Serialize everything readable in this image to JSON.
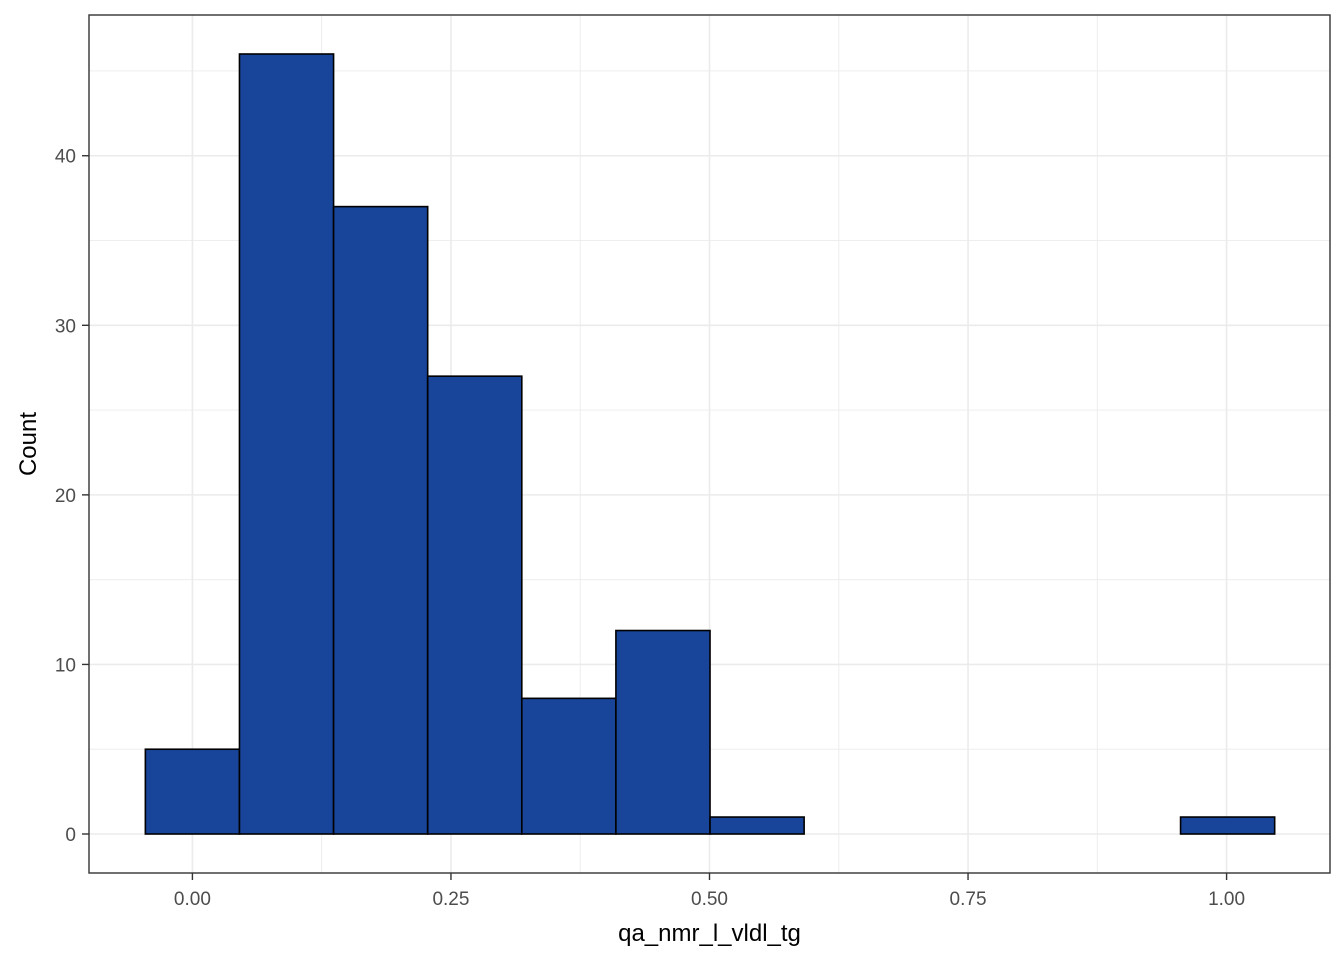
{
  "chart_data": {
    "type": "histogram",
    "title": "",
    "xlabel": "qa_nmr_l_vldl_tg",
    "ylabel": "Count",
    "bins": [
      {
        "x0": -0.0455,
        "x1": 0.0455,
        "count": 5
      },
      {
        "x0": 0.0455,
        "x1": 0.1365,
        "count": 46
      },
      {
        "x0": 0.1365,
        "x1": 0.2275,
        "count": 37
      },
      {
        "x0": 0.2275,
        "x1": 0.3185,
        "count": 27
      },
      {
        "x0": 0.3185,
        "x1": 0.4095,
        "count": 8
      },
      {
        "x0": 0.4095,
        "x1": 0.5005,
        "count": 12
      },
      {
        "x0": 0.5005,
        "x1": 0.5915,
        "count": 1
      },
      {
        "x0": 0.5915,
        "x1": 0.6825,
        "count": 0
      },
      {
        "x0": 0.6825,
        "x1": 0.7735,
        "count": 0
      },
      {
        "x0": 0.7735,
        "x1": 0.8645,
        "count": 0
      },
      {
        "x0": 0.8645,
        "x1": 0.9555,
        "count": 0
      },
      {
        "x0": 0.9555,
        "x1": 1.0465,
        "count": 1
      }
    ],
    "xlim": [
      -0.1,
      1.1
    ],
    "ylim": [
      -2.3,
      48.3
    ],
    "x_ticks": [
      {
        "value": 0.0,
        "label": "0.00"
      },
      {
        "value": 0.25,
        "label": "0.25"
      },
      {
        "value": 0.5,
        "label": "0.50"
      },
      {
        "value": 0.75,
        "label": "0.75"
      },
      {
        "value": 1.0,
        "label": "1.00"
      }
    ],
    "y_ticks": [
      {
        "value": 0,
        "label": "0"
      },
      {
        "value": 10,
        "label": "10"
      },
      {
        "value": 20,
        "label": "20"
      },
      {
        "value": 30,
        "label": "30"
      },
      {
        "value": 40,
        "label": "40"
      }
    ],
    "x_minor_ticks": [
      0.125,
      0.375,
      0.625,
      0.875
    ],
    "y_minor_ticks": [
      5,
      15,
      25,
      35,
      45
    ],
    "grid": true,
    "bar_fill": "#184499",
    "bar_stroke": "#000000",
    "grid_color": "#ebebeb",
    "panel_border_color": "#333333"
  }
}
